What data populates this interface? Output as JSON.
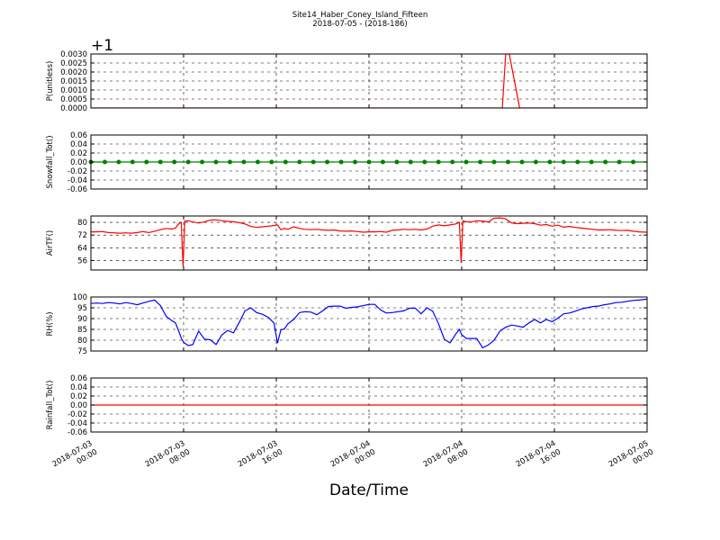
{
  "figure": {
    "title_line1": "Site14_Haber_Coney_Island_Fifteen",
    "title_line2": "2018-07-05 - (2018-186)",
    "xlabel": "Date/Time",
    "x_ticks": [
      [
        "2018-07-03",
        "00:00"
      ],
      [
        "2018-07-03",
        "08:00"
      ],
      [
        "2018-07-03",
        "16:00"
      ],
      [
        "2018-07-04",
        "00:00"
      ],
      [
        "2018-07-04",
        "08:00"
      ],
      [
        "2018-07-04",
        "16:00"
      ],
      [
        "2018-07-05",
        "00:00"
      ]
    ]
  },
  "chart_data": [
    {
      "type": "line",
      "ylabel": "P(unitless)",
      "offset_label": "+1",
      "ylim": [
        0.0,
        0.003
      ],
      "yticks": [
        "0.0030",
        "0.0025",
        "0.0020",
        "0.0015",
        "0.0010",
        "0.0005",
        "0.0000"
      ],
      "ytick_values": [
        0.003,
        0.0025,
        0.002,
        0.0015,
        0.001,
        0.0005,
        0.0
      ],
      "grid": true,
      "color": "#ff0000",
      "marker": false,
      "series": [
        {
          "hours": [
            0,
            35.5,
            35.8,
            36.1,
            37.0,
            48
          ],
          "values": [
            0.0,
            0.0,
            0.003,
            0.003,
            0.0,
            0.0
          ]
        }
      ]
    },
    {
      "type": "line",
      "ylabel": "Snowfall_Tot()",
      "ylim": [
        -0.06,
        0.06
      ],
      "yticks": [
        "0.06",
        "0.04",
        "0.02",
        "0.00",
        "-0.02",
        "-0.04",
        "-0.06"
      ],
      "ytick_values": [
        0.06,
        0.04,
        0.02,
        0.0,
        -0.02,
        -0.04,
        -0.06
      ],
      "grid": true,
      "color": "#008000",
      "marker": true,
      "series": [
        {
          "hours": [
            0,
            48
          ],
          "values": [
            0.0,
            0.0
          ]
        }
      ]
    },
    {
      "type": "line",
      "ylabel": "AirTF()",
      "ylim": [
        50,
        84
      ],
      "yticks": [
        "80",
        "72",
        "64",
        "56"
      ],
      "ytick_values": [
        80,
        72,
        64,
        56
      ],
      "grid": true,
      "color": "#ff0000",
      "marker": false,
      "series": [
        {
          "hours": [
            0,
            0.5,
            1,
            1.5,
            2,
            2.5,
            3,
            3.5,
            4,
            4.5,
            5,
            5.5,
            6,
            6.5,
            7,
            7.3,
            7.6,
            7.8,
            7.95,
            8.1,
            8.4,
            8.8,
            9.3,
            9.8,
            10.3,
            10.8,
            11.3,
            11.8,
            12.3,
            12.8,
            13.3,
            13.8,
            14.3,
            14.8,
            15.3,
            15.8,
            16.1,
            16.4,
            16.7,
            17.0,
            17.5,
            18,
            18.5,
            19,
            19.5,
            20,
            20.5,
            21,
            21.5,
            22,
            22.5,
            23,
            23.5,
            24,
            24.5,
            25,
            25.5,
            26,
            26.5,
            27,
            27.5,
            28,
            28.5,
            29,
            29.5,
            30,
            30.5,
            31,
            31.5,
            31.8,
            31.95,
            32.1,
            32.4,
            32.8,
            33.3,
            33.8,
            34.3,
            34.8,
            35.3,
            35.8,
            36.3,
            36.8,
            37.3,
            37.8,
            38.3,
            38.8,
            39.3,
            39.8,
            40.3,
            40.8,
            41.3,
            41.8,
            42.3,
            42.8,
            43.3,
            43.8,
            44.3,
            44.8,
            45.3,
            45.8,
            46.3,
            46.8,
            47.3,
            48
          ],
          "values": [
            74,
            74,
            74.2,
            73.6,
            73.4,
            73.2,
            73.4,
            73.2,
            73.6,
            74.2,
            73.6,
            74.4,
            75.4,
            76.2,
            75.8,
            76.4,
            79.2,
            80,
            52,
            80.8,
            81,
            80.2,
            79.6,
            80.4,
            81.4,
            81.6,
            81,
            80.6,
            80.4,
            79.8,
            79,
            77.4,
            76.8,
            77.2,
            77.6,
            78,
            78.4,
            75.4,
            76.2,
            75.6,
            77.2,
            76.2,
            75.6,
            75.4,
            75.6,
            75.2,
            75,
            75.2,
            74.6,
            74.4,
            74.6,
            74.2,
            73.8,
            74,
            74,
            74.2,
            73.8,
            75,
            75.2,
            75.6,
            75.4,
            75.6,
            75.2,
            75.8,
            77.6,
            78.4,
            77.8,
            78.4,
            79,
            80,
            54.5,
            81,
            80.4,
            80.2,
            81,
            80.8,
            80.2,
            82.6,
            82.8,
            82.2,
            79.6,
            79.2,
            79.4,
            79.6,
            79.2,
            78.2,
            78.6,
            77.6,
            78.2,
            77,
            77.4,
            76.8,
            76.4,
            76,
            75.6,
            75.2,
            75.2,
            75.4,
            75,
            74.8,
            75,
            74.4,
            74,
            73.8
          ]
        }
      ]
    },
    {
      "type": "line",
      "ylabel": "RH(%)",
      "ylim": [
        75,
        100
      ],
      "yticks": [
        "100",
        "95",
        "90",
        "85",
        "80",
        "75"
      ],
      "ytick_values": [
        100,
        95,
        90,
        85,
        80,
        75
      ],
      "grid": true,
      "color": "#0000ff",
      "marker": false,
      "series": [
        {
          "hours": [
            0,
            0.5,
            1,
            1.5,
            2,
            2.5,
            3,
            3.5,
            4,
            4.5,
            5,
            5.5,
            6,
            6.5,
            7,
            7.3,
            7.6,
            7.8,
            8,
            8.4,
            8.8,
            9.3,
            9.8,
            10.3,
            10.8,
            11.3,
            11.8,
            12.3,
            12.8,
            13.3,
            13.8,
            14.3,
            14.8,
            15.3,
            15.8,
            16.1,
            16.4,
            16.7,
            17.0,
            17.5,
            18,
            18.5,
            19,
            19.5,
            20,
            20.5,
            21,
            21.5,
            22,
            22.5,
            23,
            23.5,
            24,
            24.5,
            25,
            25.5,
            26,
            26.5,
            27,
            27.5,
            28,
            28.5,
            29,
            29.5,
            30,
            30.5,
            31,
            31.5,
            31.8,
            32,
            32.4,
            32.8,
            33.3,
            33.8,
            34.3,
            34.8,
            35.3,
            35.8,
            36.3,
            36.8,
            37.3,
            37.8,
            38.3,
            38.8,
            39.3,
            39.8,
            40.3,
            40.8,
            41.3,
            41.8,
            42.3,
            42.8,
            43.3,
            43.8,
            44.3,
            44.8,
            45.3,
            45.8,
            46.3,
            46.8,
            47.3,
            48
          ],
          "values": [
            97,
            97.2,
            97,
            97.4,
            97.2,
            96.8,
            97.4,
            97,
            96.4,
            97.2,
            98,
            98.6,
            96,
            91,
            89,
            88,
            84,
            81,
            79,
            77.5,
            78,
            84.2,
            80.5,
            80.2,
            78,
            82.4,
            84.5,
            83.4,
            88.2,
            93.6,
            95,
            92.8,
            92,
            90.6,
            88,
            78.6,
            84.8,
            85.2,
            87.6,
            89.6,
            92.8,
            93.2,
            93,
            91.8,
            93.6,
            95.6,
            95.8,
            95.8,
            94.8,
            95.2,
            95.4,
            96,
            96.6,
            96.6,
            94,
            92.6,
            92.8,
            93.2,
            93.6,
            94.8,
            94.8,
            92.2,
            95,
            93.4,
            87.6,
            80.4,
            78.8,
            83,
            85,
            82.6,
            80.8,
            80.8,
            80.8,
            76.5,
            77.8,
            80,
            84.2,
            86,
            87,
            86.6,
            86,
            88,
            89.6,
            88,
            89.6,
            88.6,
            90.2,
            92.2,
            92.6,
            93.4,
            94.4,
            95,
            95.6,
            95.8,
            96.4,
            96.8,
            97.4,
            97.6,
            98,
            98.4,
            98.6,
            99
          ]
        }
      ]
    },
    {
      "type": "line",
      "ylabel": "Rainfall_Tot()",
      "ylim": [
        -0.06,
        0.06
      ],
      "yticks": [
        "0.06",
        "0.04",
        "0.02",
        "0.00",
        "-0.02",
        "-0.04",
        "-0.06"
      ],
      "ytick_values": [
        0.06,
        0.04,
        0.02,
        0.0,
        -0.02,
        -0.04,
        -0.06
      ],
      "grid": true,
      "color": "#ff0000",
      "marker": false,
      "series": [
        {
          "hours": [
            0,
            48
          ],
          "values": [
            0.0,
            0.0
          ]
        }
      ]
    }
  ]
}
